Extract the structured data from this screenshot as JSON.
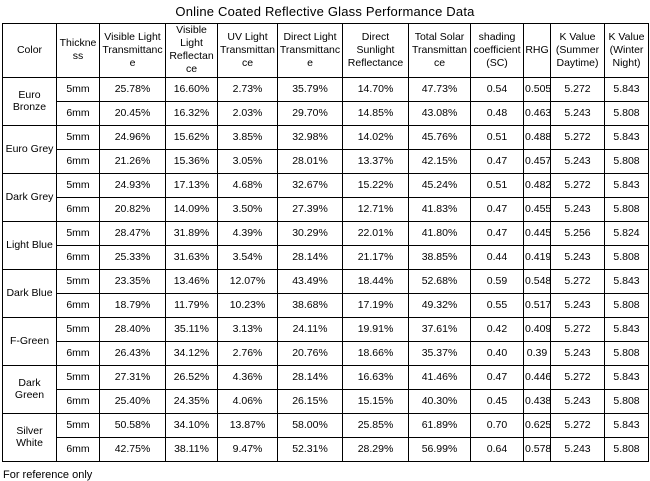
{
  "page": {
    "title": "Online Coated Reflective Glass Performance Data",
    "footer": "For reference only",
    "colors": {
      "border": "#000000",
      "text": "#000000",
      "background": "#ffffff"
    }
  },
  "table": {
    "columns": [
      "Color",
      "Thickness",
      "Visible Light Transmittance",
      "Visible Light Reflectance",
      "UV Light Transmittance",
      "Direct Light Transmittance",
      "Direct Sunlight Reflectance",
      "Total Solar Transmittance",
      "shading coefficient (SC)",
      "RHG",
      "K Value (Summer Daytime)",
      "K Value (Winter Night)"
    ],
    "groups": [
      {
        "color": "Euro Bronze",
        "rows": [
          {
            "thickness": "5mm",
            "values": [
              "25.78%",
              "16.60%",
              "2.73%",
              "35.79%",
              "14.70%",
              "47.73%",
              "0.54",
              "0.505",
              "5.272",
              "5.843"
            ]
          },
          {
            "thickness": "6mm",
            "values": [
              "20.45%",
              "16.32%",
              "2.03%",
              "29.70%",
              "14.85%",
              "43.08%",
              "0.48",
              "0.463",
              "5.243",
              "5.808"
            ]
          }
        ]
      },
      {
        "color": "Euro Grey",
        "rows": [
          {
            "thickness": "5mm",
            "values": [
              "24.96%",
              "15.62%",
              "3.85%",
              "32.98%",
              "14.02%",
              "45.76%",
              "0.51",
              "0.488",
              "5.272",
              "5.843"
            ]
          },
          {
            "thickness": "6mm",
            "values": [
              "21.26%",
              "15.36%",
              "3.05%",
              "28.01%",
              "13.37%",
              "42.15%",
              "0.47",
              "0.457",
              "5.243",
              "5.808"
            ]
          }
        ]
      },
      {
        "color": "Dark Grey",
        "rows": [
          {
            "thickness": "5mm",
            "values": [
              "24.93%",
              "17.13%",
              "4.68%",
              "32.67%",
              "15.22%",
              "45.24%",
              "0.51",
              "0.482",
              "5.272",
              "5.843"
            ]
          },
          {
            "thickness": "6mm",
            "values": [
              "20.82%",
              "14.09%",
              "3.50%",
              "27.39%",
              "12.71%",
              "41.83%",
              "0.47",
              "0.455",
              "5.243",
              "5.808"
            ]
          }
        ]
      },
      {
        "color": "Light Blue",
        "rows": [
          {
            "thickness": "5mm",
            "values": [
              "28.47%",
              "31.89%",
              "4.39%",
              "30.29%",
              "22.01%",
              "41.80%",
              "0.47",
              "0.445",
              "5.256",
              "5.824"
            ]
          },
          {
            "thickness": "6mm",
            "values": [
              "25.33%",
              "31.63%",
              "3.54%",
              "28.14%",
              "21.17%",
              "38.85%",
              "0.44",
              "0.419",
              "5.243",
              "5.808"
            ]
          }
        ]
      },
      {
        "color": "Dark Blue",
        "rows": [
          {
            "thickness": "5mm",
            "values": [
              "23.35%",
              "13.46%",
              "12.07%",
              "43.49%",
              "18.44%",
              "52.68%",
              "0.59",
              "0.548",
              "5.272",
              "5.843"
            ]
          },
          {
            "thickness": "6mm",
            "values": [
              "18.79%",
              "11.79%",
              "10.23%",
              "38.68%",
              "17.19%",
              "49.32%",
              "0.55",
              "0.517",
              "5.243",
              "5.808"
            ]
          }
        ]
      },
      {
        "color": "F-Green",
        "rows": [
          {
            "thickness": "5mm",
            "values": [
              "28.40%",
              "35.11%",
              "3.13%",
              "24.11%",
              "19.91%",
              "37.61%",
              "0.42",
              "0.409",
              "5.272",
              "5.843"
            ]
          },
          {
            "thickness": "6mm",
            "values": [
              "26.43%",
              "34.12%",
              "2.76%",
              "20.76%",
              "18.66%",
              "35.37%",
              "0.40",
              "0.39",
              "5.243",
              "5.808"
            ]
          }
        ]
      },
      {
        "color": "Dark Green",
        "rows": [
          {
            "thickness": "5mm",
            "values": [
              "27.31%",
              "26.52%",
              "4.36%",
              "28.14%",
              "16.63%",
              "41.46%",
              "0.47",
              "0.446",
              "5.272",
              "5.843"
            ]
          },
          {
            "thickness": "6mm",
            "values": [
              "25.40%",
              "24.35%",
              "4.06%",
              "26.15%",
              "15.15%",
              "40.30%",
              "0.45",
              "0.438",
              "5.243",
              "5.808"
            ]
          }
        ]
      },
      {
        "color": "Silver White",
        "rows": [
          {
            "thickness": "5mm",
            "values": [
              "50.58%",
              "34.10%",
              "13.87%",
              "58.00%",
              "25.85%",
              "61.89%",
              "0.70",
              "0.625",
              "5.272",
              "5.843"
            ]
          },
          {
            "thickness": "6mm",
            "values": [
              "42.75%",
              "38.11%",
              "9.47%",
              "52.31%",
              "28.29%",
              "56.99%",
              "0.64",
              "0.578",
              "5.243",
              "5.808"
            ]
          }
        ]
      }
    ]
  }
}
